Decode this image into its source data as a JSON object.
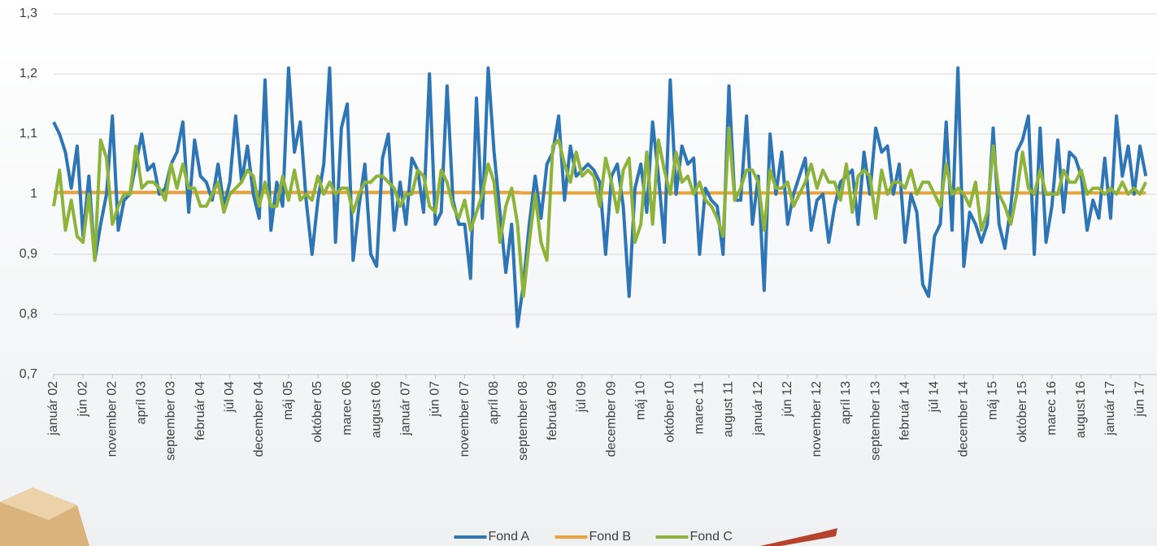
{
  "chart_data": {
    "type": "line",
    "categories": [
      "január 02",
      null,
      null,
      null,
      null,
      "jún 02",
      null,
      null,
      null,
      null,
      "november 02",
      null,
      null,
      null,
      null,
      "apríl 03",
      null,
      null,
      null,
      null,
      "september 03",
      null,
      null,
      null,
      null,
      "február 04",
      null,
      null,
      null,
      null,
      "júl 04",
      null,
      null,
      null,
      null,
      "december 04",
      null,
      null,
      null,
      null,
      "máj 05",
      null,
      null,
      null,
      null,
      "október 05",
      null,
      null,
      null,
      null,
      "marec 06",
      null,
      null,
      null,
      null,
      "august 06",
      null,
      null,
      null,
      null,
      "január 07",
      null,
      null,
      null,
      null,
      "jún 07",
      null,
      null,
      null,
      null,
      "november 07",
      null,
      null,
      null,
      null,
      "apríl 08",
      null,
      null,
      null,
      null,
      "september 08",
      null,
      null,
      null,
      null,
      "február 09",
      null,
      null,
      null,
      null,
      "júl 09",
      null,
      null,
      null,
      null,
      "december 09",
      null,
      null,
      null,
      null,
      "máj 10",
      null,
      null,
      null,
      null,
      "október 10",
      null,
      null,
      null,
      null,
      "marec 11",
      null,
      null,
      null,
      null,
      "august 11",
      null,
      null,
      null,
      null,
      "január 12",
      null,
      null,
      null,
      null,
      "jún 12",
      null,
      null,
      null,
      null,
      "november 12",
      null,
      null,
      null,
      null,
      "apríl 13",
      null,
      null,
      null,
      null,
      "september 13",
      null,
      null,
      null,
      null,
      "február 14",
      null,
      null,
      null,
      null,
      "júl 14",
      null,
      null,
      null,
      null,
      "december 14",
      null,
      null,
      null,
      null,
      "máj 15",
      null,
      null,
      null,
      null,
      "október 15",
      null,
      null,
      null,
      null,
      "marec 16",
      null,
      null,
      null,
      null,
      "august 16",
      null,
      null,
      null,
      null,
      "január 17",
      null,
      null,
      null,
      null,
      "jún 17",
      null
    ],
    "series": [
      {
        "name": "Fond A",
        "color": "#2e75b6",
        "values": [
          1.12,
          1.1,
          1.07,
          1.01,
          1.08,
          0.93,
          1.03,
          0.89,
          0.95,
          1.0,
          1.13,
          0.94,
          0.99,
          1.0,
          1.05,
          1.1,
          1.04,
          1.05,
          1.0,
          1.01,
          1.05,
          1.07,
          1.12,
          0.97,
          1.09,
          1.03,
          1.02,
          0.99,
          1.05,
          0.98,
          1.02,
          1.13,
          1.02,
          1.08,
          1.0,
          0.96,
          1.19,
          0.94,
          1.02,
          0.98,
          1.21,
          1.07,
          1.12,
          0.99,
          0.9,
          0.99,
          1.05,
          1.21,
          0.92,
          1.11,
          1.15,
          0.89,
          0.98,
          1.05,
          0.9,
          0.88,
          1.06,
          1.1,
          0.94,
          1.02,
          0.95,
          1.06,
          1.04,
          0.97,
          1.2,
          0.95,
          0.97,
          1.18,
          0.99,
          0.95,
          0.95,
          0.86,
          1.16,
          0.96,
          1.21,
          1.07,
          0.97,
          0.87,
          0.95,
          0.78,
          0.85,
          0.95,
          1.03,
          0.96,
          1.05,
          1.07,
          1.13,
          0.99,
          1.08,
          1.03,
          1.04,
          1.05,
          1.04,
          1.02,
          0.9,
          1.03,
          1.05,
          0.98,
          0.83,
          1.01,
          1.05,
          0.97,
          1.12,
          1.03,
          0.92,
          1.19,
          1.0,
          1.08,
          1.05,
          1.06,
          0.9,
          1.01,
          0.99,
          0.98,
          0.9,
          1.18,
          0.99,
          0.99,
          1.13,
          0.95,
          1.03,
          0.84,
          1.1,
          1.0,
          1.07,
          0.95,
          1.0,
          1.03,
          1.06,
          0.94,
          0.99,
          1.0,
          0.92,
          0.98,
          1.02,
          1.03,
          1.04,
          0.95,
          1.07,
          1.0,
          1.11,
          1.07,
          1.08,
          1.0,
          1.05,
          0.92,
          1.0,
          0.97,
          0.85,
          0.83,
          0.93,
          0.95,
          1.12,
          0.94,
          1.21,
          0.88,
          0.97,
          0.95,
          0.92,
          0.95,
          1.11,
          0.95,
          0.91,
          0.98,
          1.07,
          1.09,
          1.13,
          0.9,
          1.11,
          0.92,
          0.98,
          1.09,
          0.97,
          1.07,
          1.06,
          1.03,
          0.94,
          0.99,
          0.96,
          1.06,
          0.96,
          1.13,
          1.03,
          1.08,
          1.0,
          1.08,
          1.03
        ]
      },
      {
        "name": "Fond B",
        "color": "#e8a33d",
        "values": [
          1.003,
          1.003,
          1.003,
          1.003,
          1.003,
          1.003,
          1.003,
          1.003,
          1.003,
          1.003,
          1.003,
          1.003,
          1.003,
          1.003,
          1.003,
          1.003,
          1.003,
          1.003,
          1.003,
          1.003,
          1.003,
          1.003,
          1.003,
          1.003,
          1.003,
          1.003,
          1.003,
          1.003,
          1.003,
          1.003,
          1.003,
          1.003,
          1.003,
          1.003,
          1.003,
          1.003,
          1.003,
          1.003,
          1.003,
          1.003,
          1.003,
          1.003,
          1.003,
          1.003,
          1.003,
          1.003,
          1.003,
          1.003,
          1.003,
          1.003,
          1.003,
          1.003,
          1.003,
          1.003,
          1.003,
          1.003,
          1.003,
          1.003,
          1.003,
          1.003,
          1.003,
          1.003,
          1.003,
          1.003,
          1.003,
          1.003,
          1.003,
          1.003,
          1.003,
          1.003,
          1.003,
          1.003,
          1.003,
          1.003,
          1.003,
          1.003,
          1.003,
          1.003,
          1.003,
          1.003,
          1.002,
          1.002,
          1.002,
          1.002,
          1.002,
          1.002,
          1.002,
          1.002,
          1.002,
          1.002,
          1.002,
          1.002,
          1.002,
          1.002,
          1.002,
          1.002,
          1.002,
          1.002,
          1.002,
          1.002,
          1.002,
          1.002,
          1.002,
          1.002,
          1.002,
          1.002,
          1.002,
          1.002,
          1.002,
          1.002,
          1.002,
          1.002,
          1.002,
          1.002,
          1.002,
          1.002,
          1.002,
          1.002,
          1.002,
          1.002,
          1.002,
          1.002,
          1.002,
          1.002,
          1.002,
          1.002,
          1.002,
          1.002,
          1.002,
          1.002,
          1.002,
          1.002,
          1.002,
          1.002,
          1.002,
          1.002,
          1.002,
          1.002,
          1.002,
          1.002,
          1.002,
          1.002,
          1.002,
          1.002,
          1.002,
          1.002,
          1.002,
          1.002,
          1.002,
          1.002,
          1.002,
          1.002,
          1.002,
          1.002,
          1.002,
          1.002,
          1.002,
          1.002,
          1.002,
          1.002,
          1.002,
          1.002,
          1.002,
          1.002,
          1.002,
          1.002,
          1.002,
          1.002,
          1.002,
          1.002,
          1.002,
          1.002,
          1.002,
          1.002,
          1.002,
          1.002,
          1.002,
          1.002,
          1.002,
          1.002,
          1.002,
          1.002,
          1.002,
          1.002,
          1.002,
          1.002,
          1.002
        ]
      },
      {
        "name": "Fond C",
        "color": "#8db33a",
        "values": [
          0.98,
          1.04,
          0.94,
          0.99,
          0.93,
          0.92,
          1.0,
          0.89,
          1.09,
          1.06,
          0.95,
          0.98,
          1.0,
          1.0,
          1.08,
          1.01,
          1.02,
          1.02,
          1.01,
          0.99,
          1.05,
          1.01,
          1.05,
          1.01,
          1.01,
          0.98,
          0.98,
          1.0,
          1.02,
          0.97,
          1.0,
          1.01,
          1.02,
          1.04,
          1.03,
          0.98,
          1.02,
          0.98,
          0.98,
          1.03,
          0.99,
          1.04,
          0.99,
          1.0,
          0.99,
          1.03,
          1.0,
          1.02,
          1.0,
          1.01,
          1.01,
          0.97,
          1.0,
          1.02,
          1.02,
          1.03,
          1.03,
          1.02,
          1.01,
          0.98,
          1.0,
          1.0,
          1.04,
          1.03,
          0.98,
          0.97,
          1.04,
          1.02,
          0.98,
          0.96,
          0.99,
          0.94,
          0.97,
          1.0,
          1.05,
          1.02,
          0.92,
          0.98,
          1.01,
          0.95,
          0.83,
          0.92,
          1.0,
          0.92,
          0.89,
          1.08,
          1.09,
          1.05,
          1.02,
          1.07,
          1.03,
          1.04,
          1.03,
          0.98,
          1.06,
          1.02,
          0.97,
          1.04,
          1.06,
          0.92,
          0.95,
          1.07,
          0.95,
          1.09,
          1.04,
          1.0,
          1.07,
          1.02,
          1.03,
          1.0,
          1.02,
          0.99,
          0.98,
          0.96,
          0.93,
          1.11,
          0.99,
          1.01,
          1.04,
          1.04,
          1.02,
          0.94,
          1.04,
          1.01,
          1.01,
          1.02,
          0.98,
          1.0,
          1.02,
          1.05,
          1.01,
          1.04,
          1.02,
          1.02,
          0.99,
          1.05,
          0.97,
          1.03,
          1.04,
          1.03,
          0.96,
          1.04,
          1.0,
          1.02,
          1.02,
          1.01,
          1.04,
          1.0,
          1.02,
          1.02,
          1.0,
          0.98,
          1.05,
          1.0,
          1.01,
          1.0,
          0.98,
          1.02,
          0.94,
          0.97,
          1.08,
          1.0,
          0.98,
          0.95,
          1.0,
          1.07,
          1.01,
          1.0,
          1.04,
          1.0,
          1.0,
          1.0,
          1.04,
          1.02,
          1.02,
          1.04,
          1.0,
          1.01,
          1.01,
          1.0,
          1.01,
          1.0,
          1.02,
          1.0,
          1.01,
          1.0,
          1.02
        ]
      }
    ],
    "ylim": [
      0.7,
      1.3
    ],
    "yticks": [
      {
        "value": 0.7,
        "label": "0,7"
      },
      {
        "value": 0.8,
        "label": "0,8"
      },
      {
        "value": 0.9,
        "label": "0,9"
      },
      1,
      {
        "value": 1.1,
        "label": "1,1"
      },
      {
        "value": 1.2,
        "label": "1,2"
      },
      {
        "value": 1.3,
        "label": "1,3"
      }
    ],
    "grid": true,
    "legend": "bottom"
  }
}
